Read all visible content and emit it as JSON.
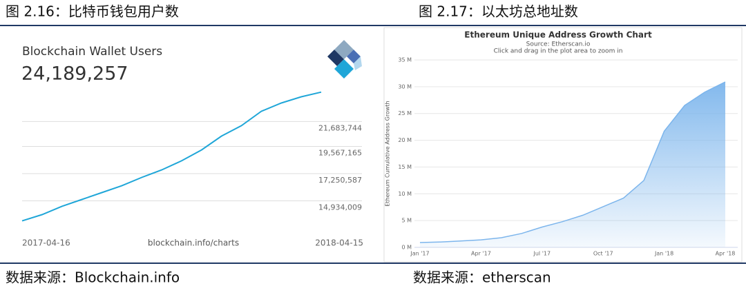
{
  "chart_data": [
    {
      "type": "line",
      "caption": "图 2.16：比特币钱包用户数",
      "title": "Blockchain Wallet Users",
      "headline": "24,189,257",
      "annotation": "blockchain.info/charts",
      "source": "数据来源：Blockchain.info",
      "color": "#1fa6d8",
      "categories": [
        "2017-04-16",
        null,
        null,
        null,
        null,
        null,
        null,
        null,
        null,
        null,
        null,
        null,
        null,
        null,
        null,
        "2018-04-15"
      ],
      "values": [
        13230000,
        13760000,
        14470000,
        15050000,
        15640000,
        16220000,
        16930000,
        17570000,
        18340000,
        19270000,
        20450000,
        21330000,
        22560000,
        23260000,
        23790000,
        24189257
      ],
      "ylim": [
        12617431,
        24230000
      ],
      "yticks": [
        {
          "value": 14934009,
          "label": "14,934,009"
        },
        {
          "value": 17250587,
          "label": "17,250,587"
        },
        {
          "value": 19567165,
          "label": "19,567,165"
        },
        {
          "value": 21683744,
          "label": "21,683,744"
        }
      ],
      "grid": true
    },
    {
      "type": "area",
      "caption": "图 2.17：以太坊总地址数",
      "title": "Ethereum Unique Address Growth Chart",
      "subtitle": "Source: Etherscan.io",
      "note": "Click and drag in the plot area to zoom in",
      "y_label": "Ethereum Cumulative Address Growth",
      "source": "数据来源：etherscan",
      "color": "#7cb5ec",
      "categories": [
        "Jan '17",
        null,
        null,
        "Apr '17",
        null,
        null,
        "Jul '17",
        null,
        null,
        "Oct '17",
        null,
        null,
        "Jan '18",
        null,
        null,
        "Apr '18"
      ],
      "values": [
        0.9,
        1.0,
        1.2,
        1.4,
        1.8,
        2.6,
        3.8,
        4.8,
        6.0,
        7.6,
        9.2,
        12.5,
        21.7,
        26.5,
        29.0,
        30.9
      ],
      "ylim": [
        0,
        35
      ],
      "yticks": [
        {
          "value": 0,
          "label": "0 M"
        },
        {
          "value": 5,
          "label": "5 M"
        },
        {
          "value": 10,
          "label": "10 M"
        },
        {
          "value": 15,
          "label": "15 M"
        },
        {
          "value": 20,
          "label": "20 M"
        },
        {
          "value": 25,
          "label": "25 M"
        },
        {
          "value": 30,
          "label": "30 M"
        },
        {
          "value": 35,
          "label": "35 M"
        }
      ],
      "grid": true
    }
  ]
}
